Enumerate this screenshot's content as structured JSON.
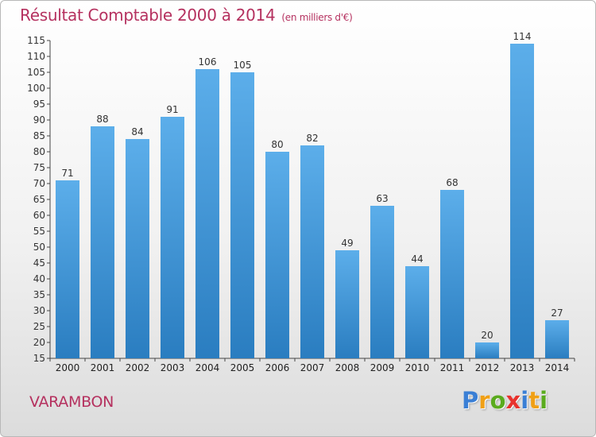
{
  "header": {
    "title": "Résultat Comptable 2000 à 2014",
    "subtitle": "(en milliers d'€)"
  },
  "commune": "VARAMBON",
  "logo": {
    "letters": [
      {
        "char": "P",
        "color": "#3a7fd5"
      },
      {
        "char": "r",
        "color": "#f0a016"
      },
      {
        "char": "o",
        "color": "#5aab1e"
      },
      {
        "char": "x",
        "color": "#e8322d"
      },
      {
        "char": "i",
        "color": "#3a7fd5"
      },
      {
        "char": "t",
        "color": "#f0a016"
      },
      {
        "char": "i",
        "color": "#5aab1e"
      }
    ]
  },
  "colors": {
    "title": "#b5315f",
    "bar_top": "#5caeea",
    "bar_bottom": "#2a7dc0"
  },
  "chart_data": {
    "type": "bar",
    "title": "Résultat Comptable 2000 à 2014",
    "subtitle": "(en milliers d'€)",
    "xlabel": "",
    "ylabel": "",
    "categories": [
      "2000",
      "2001",
      "2002",
      "2003",
      "2004",
      "2005",
      "2006",
      "2007",
      "2008",
      "2009",
      "2010",
      "2011",
      "2012",
      "2013",
      "2014"
    ],
    "values": [
      71,
      88,
      84,
      91,
      106,
      105,
      80,
      82,
      49,
      63,
      44,
      68,
      20,
      114,
      27
    ],
    "ylim": [
      15,
      115
    ],
    "yticks": [
      15,
      20,
      25,
      30,
      35,
      40,
      45,
      50,
      55,
      60,
      65,
      70,
      75,
      80,
      85,
      90,
      95,
      100,
      105,
      110,
      115
    ],
    "grid": false,
    "legend": "none"
  }
}
